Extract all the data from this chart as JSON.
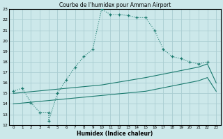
{
  "title": "Courbe de l'humidex pour Amman Airport",
  "xlabel": "Humidex (Indice chaleur)",
  "xlim": [
    -0.5,
    23.5
  ],
  "ylim": [
    12,
    23
  ],
  "yticks": [
    12,
    13,
    14,
    15,
    16,
    17,
    18,
    19,
    20,
    21,
    22,
    23
  ],
  "xticks": [
    0,
    1,
    2,
    3,
    4,
    5,
    6,
    7,
    8,
    9,
    10,
    11,
    12,
    13,
    14,
    15,
    16,
    17,
    18,
    19,
    20,
    21,
    22,
    23
  ],
  "bg_color": "#cce8ea",
  "grid_color": "#aacdd2",
  "line_color": "#1a7a6e",
  "line1_x": [
    0,
    1,
    2,
    3,
    4,
    4,
    5,
    6,
    7,
    8,
    9,
    10,
    11,
    12,
    13,
    14,
    15,
    16,
    17,
    18,
    19,
    20,
    21,
    22
  ],
  "line1_y": [
    15.2,
    15.5,
    14.1,
    13.2,
    13.2,
    12.4,
    15.0,
    16.3,
    17.5,
    18.5,
    19.2,
    23.0,
    22.5,
    22.5,
    22.4,
    22.2,
    22.2,
    21.0,
    19.2,
    18.5,
    18.3,
    18.0,
    17.8,
    18.0
  ],
  "line2_x": [
    0,
    10,
    15,
    21,
    22,
    23
  ],
  "line2_y": [
    15.0,
    15.8,
    16.5,
    17.5,
    17.8,
    16.0
  ],
  "line3_x": [
    0,
    10,
    15,
    21,
    22,
    23
  ],
  "line3_y": [
    14.0,
    14.8,
    15.2,
    16.2,
    16.5,
    15.2
  ]
}
